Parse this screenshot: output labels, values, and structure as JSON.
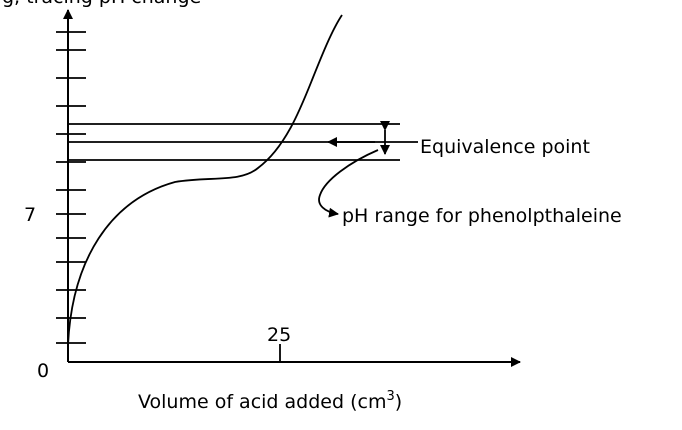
{
  "top_text": "g, tracing pH change",
  "y_tick_label": "7",
  "origin_label": "0",
  "x_tick_label": "25",
  "x_axis_label_main": "Volume of acid added (cm",
  "x_axis_label_sup": "3",
  "x_axis_label_end": ")",
  "equivalence_label": "Equivalence point",
  "ph_range_label": "pH range for phenolpthaleine"
}
